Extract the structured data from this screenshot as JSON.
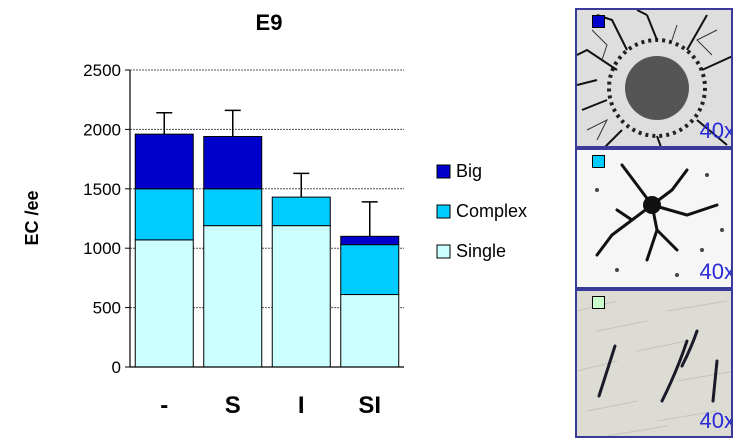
{
  "chart_data": {
    "type": "bar",
    "stacked": true,
    "title": "E9",
    "xlabel": "",
    "ylabel": "EC /ee",
    "ylim": [
      0,
      2500
    ],
    "yticks": [
      0,
      500,
      1000,
      1500,
      2000,
      2500
    ],
    "grid": true,
    "legend_position": "right",
    "categories": [
      "-",
      "S",
      "I",
      "SI"
    ],
    "series": [
      {
        "name": "Single",
        "color": "#ccffff",
        "values": [
          1070,
          1190,
          1190,
          610
        ]
      },
      {
        "name": "Complex",
        "color": "#00ccff",
        "values": [
          430,
          310,
          240,
          420
        ]
      },
      {
        "name": "Big",
        "color": "#0000cc",
        "values": [
          460,
          440,
          0,
          70
        ]
      }
    ],
    "error_bars": [
      180,
      220,
      200,
      290
    ],
    "legend_order": [
      "Big",
      "Complex",
      "Single"
    ]
  },
  "panels": [
    {
      "marker_color": "#0000cc",
      "magnification": "40x"
    },
    {
      "marker_color": "#00ccff",
      "magnification": "40x"
    },
    {
      "marker_color": "#ccffcc",
      "magnification": "40x"
    }
  ]
}
